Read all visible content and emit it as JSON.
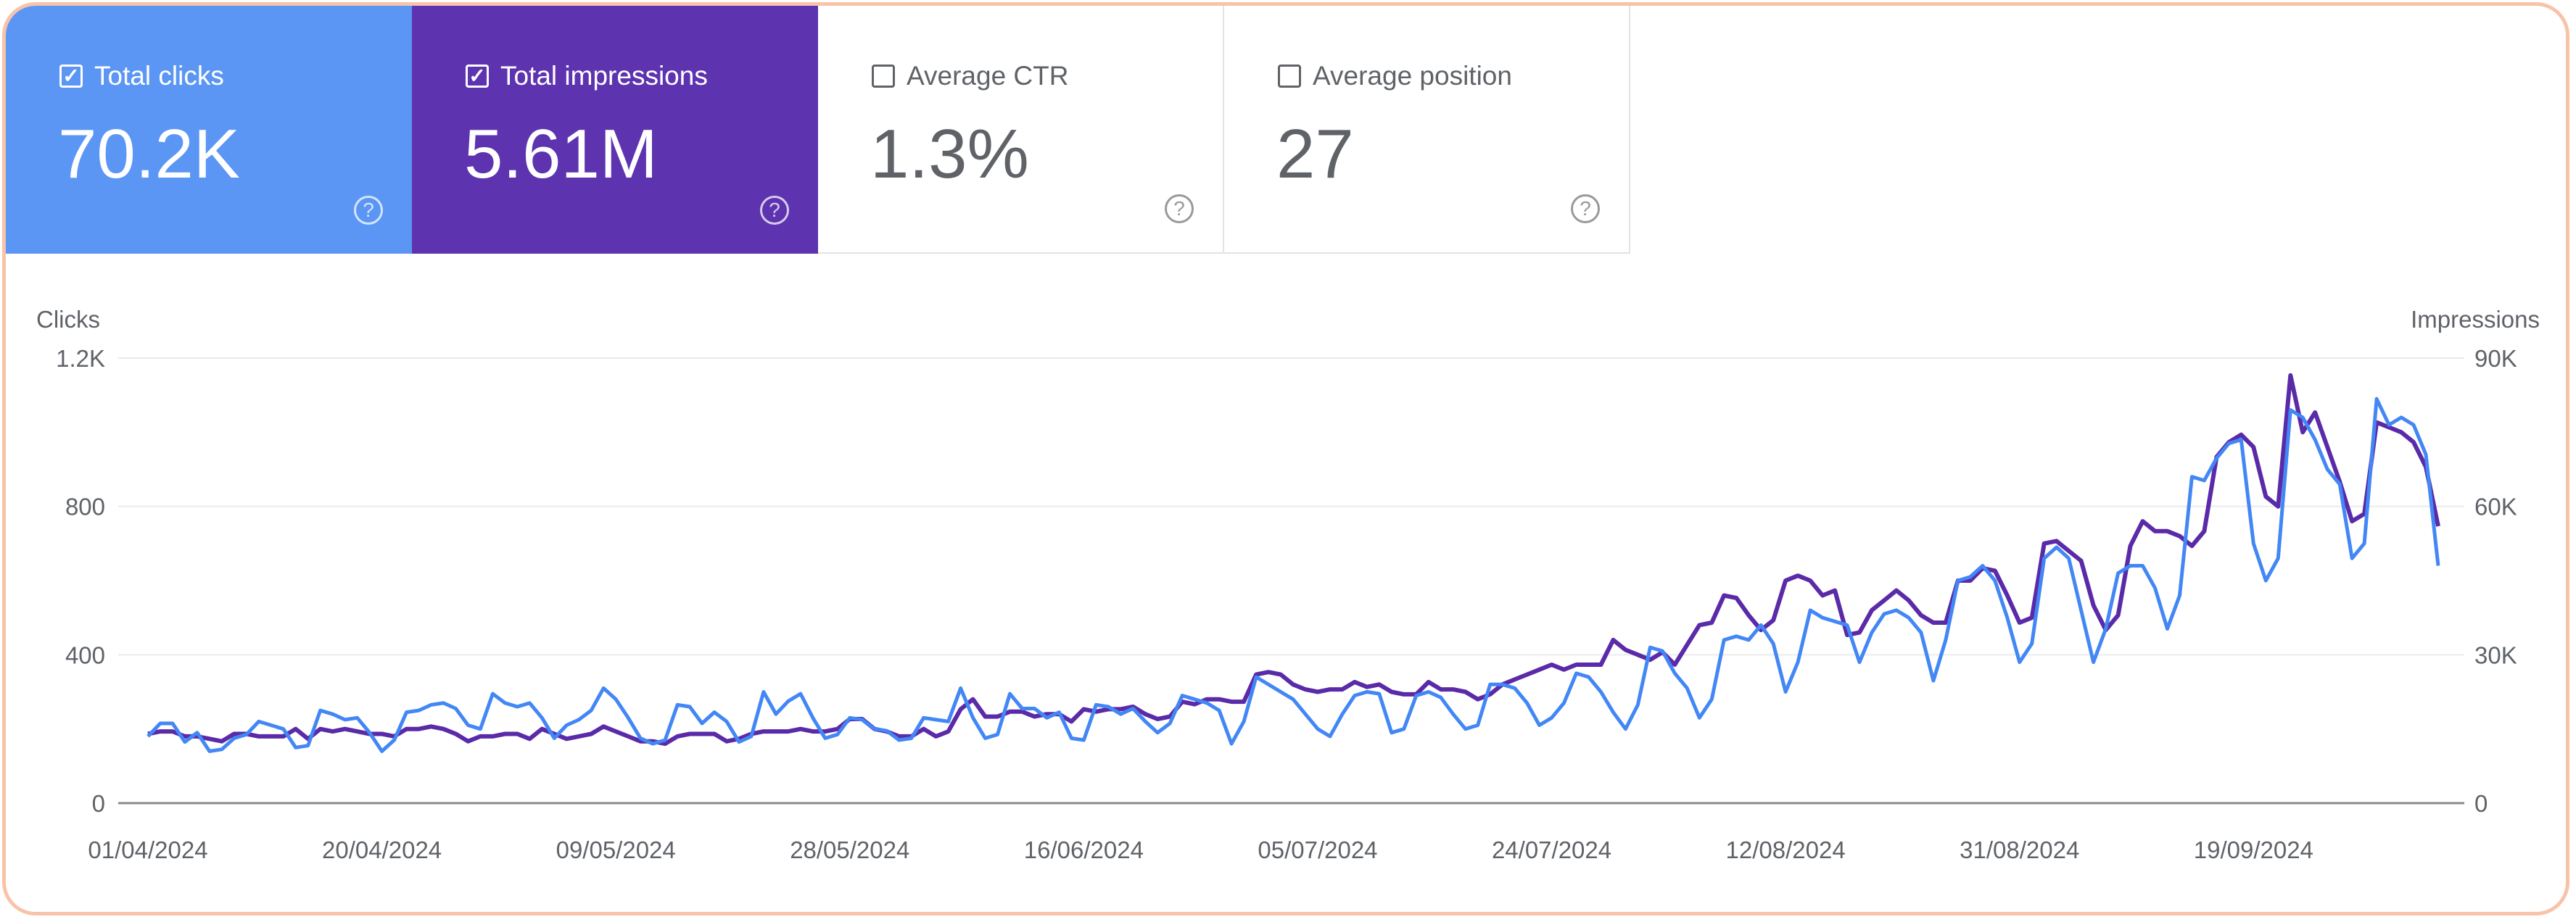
{
  "cards": [
    {
      "label": "Total clicks",
      "value": "70.2K",
      "checked": true,
      "color": "#5b96f5"
    },
    {
      "label": "Total impressions",
      "value": "5.61M",
      "checked": true,
      "color": "#5e33b0"
    },
    {
      "label": "Average CTR",
      "value": "1.3%",
      "checked": false
    },
    {
      "label": "Average position",
      "value": "27",
      "checked": false
    }
  ],
  "help_icon": "question-circle-icon",
  "check_glyph": "✓",
  "help_glyph": "?",
  "chart_data": {
    "type": "line",
    "grid": true,
    "left_axis": {
      "label": "Clicks",
      "ticks": [
        "0",
        "400",
        "800",
        "1.2K"
      ],
      "range": [
        0,
        1200
      ]
    },
    "right_axis": {
      "label": "Impressions",
      "ticks": [
        "0",
        "30K",
        "60K",
        "90K"
      ],
      "range": [
        0,
        90000
      ]
    },
    "x_ticks": [
      "01/04/2024",
      "20/04/2024",
      "09/05/2024",
      "28/05/2024",
      "16/06/2024",
      "05/07/2024",
      "24/07/2024",
      "12/08/2024",
      "31/08/2024",
      "19/09/2024"
    ],
    "x": [
      "2024-04-01",
      "2024-04-02",
      "2024-04-03",
      "2024-04-04",
      "2024-04-05",
      "2024-04-06",
      "2024-04-07",
      "2024-04-08",
      "2024-04-09",
      "2024-04-10",
      "2024-04-11",
      "2024-04-12",
      "2024-04-13",
      "2024-04-14",
      "2024-04-15",
      "2024-04-16",
      "2024-04-17",
      "2024-04-18",
      "2024-04-19",
      "2024-04-20",
      "2024-04-21",
      "2024-04-22",
      "2024-04-23",
      "2024-04-24",
      "2024-04-25",
      "2024-04-26",
      "2024-04-27",
      "2024-04-28",
      "2024-04-29",
      "2024-04-30",
      "2024-05-01",
      "2024-05-02",
      "2024-05-03",
      "2024-05-04",
      "2024-05-05",
      "2024-05-06",
      "2024-05-07",
      "2024-05-08",
      "2024-05-09",
      "2024-05-10",
      "2024-05-11",
      "2024-05-12",
      "2024-05-13",
      "2024-05-14",
      "2024-05-15",
      "2024-05-16",
      "2024-05-17",
      "2024-05-18",
      "2024-05-19",
      "2024-05-20",
      "2024-05-21",
      "2024-05-22",
      "2024-05-23",
      "2024-05-24",
      "2024-05-25",
      "2024-05-26",
      "2024-05-27",
      "2024-05-28",
      "2024-05-29",
      "2024-05-30",
      "2024-05-31",
      "2024-06-01",
      "2024-06-02",
      "2024-06-03",
      "2024-06-04",
      "2024-06-05",
      "2024-06-06",
      "2024-06-07",
      "2024-06-08",
      "2024-06-09",
      "2024-06-10",
      "2024-06-11",
      "2024-06-12",
      "2024-06-13",
      "2024-06-14",
      "2024-06-15",
      "2024-06-16",
      "2024-06-17",
      "2024-06-18",
      "2024-06-19",
      "2024-06-20",
      "2024-06-21",
      "2024-06-22",
      "2024-06-23",
      "2024-06-24",
      "2024-06-25",
      "2024-06-26",
      "2024-06-27",
      "2024-06-28",
      "2024-06-29",
      "2024-06-30",
      "2024-07-01",
      "2024-07-02",
      "2024-07-03",
      "2024-07-04",
      "2024-07-05",
      "2024-07-06",
      "2024-07-07",
      "2024-07-08",
      "2024-07-09",
      "2024-07-10",
      "2024-07-11",
      "2024-07-12",
      "2024-07-13",
      "2024-07-14",
      "2024-07-15",
      "2024-07-16",
      "2024-07-17",
      "2024-07-18",
      "2024-07-19",
      "2024-07-20",
      "2024-07-21",
      "2024-07-22",
      "2024-07-23",
      "2024-07-24",
      "2024-07-25",
      "2024-07-26",
      "2024-07-27",
      "2024-07-28",
      "2024-07-29",
      "2024-07-30",
      "2024-07-31",
      "2024-08-01",
      "2024-08-02",
      "2024-08-03",
      "2024-08-04",
      "2024-08-05",
      "2024-08-06",
      "2024-08-07",
      "2024-08-08",
      "2024-08-09",
      "2024-08-10",
      "2024-08-11",
      "2024-08-12",
      "2024-08-13",
      "2024-08-14",
      "2024-08-15",
      "2024-08-16",
      "2024-08-17",
      "2024-08-18",
      "2024-08-19",
      "2024-08-20",
      "2024-08-21",
      "2024-08-22",
      "2024-08-23",
      "2024-08-24",
      "2024-08-25",
      "2024-08-26",
      "2024-08-27",
      "2024-08-28",
      "2024-08-29",
      "2024-08-30",
      "2024-08-31",
      "2024-09-01",
      "2024-09-02",
      "2024-09-03",
      "2024-09-04",
      "2024-09-05",
      "2024-09-06",
      "2024-09-07",
      "2024-09-08",
      "2024-09-09",
      "2024-09-10",
      "2024-09-11",
      "2024-09-12",
      "2024-09-13",
      "2024-09-14",
      "2024-09-15",
      "2024-09-16",
      "2024-09-17",
      "2024-09-18",
      "2024-09-19",
      "2024-09-20",
      "2024-09-21",
      "2024-09-22",
      "2024-09-23",
      "2024-09-24",
      "2024-09-25",
      "2024-09-26",
      "2024-09-27",
      "2024-09-28",
      "2024-09-29",
      "2024-09-30",
      "2024-10-01",
      "2024-10-02",
      "2024-10-03",
      "2024-10-04"
    ],
    "series": [
      {
        "axis": "left",
        "color": "#4287f5",
        "values": [
          180,
          215,
          215,
          165,
          190,
          140,
          145,
          175,
          185,
          220,
          210,
          200,
          150,
          155,
          250,
          240,
          225,
          230,
          190,
          140,
          170,
          245,
          250,
          265,
          270,
          255,
          210,
          200,
          295,
          270,
          260,
          270,
          230,
          175,
          210,
          225,
          250,
          310,
          280,
          230,
          175,
          160,
          170,
          265,
          260,
          215,
          245,
          220,
          165,
          180,
          300,
          240,
          275,
          295,
          230,
          175,
          185,
          230,
          225,
          200,
          195,
          170,
          175,
          230,
          225,
          220,
          310,
          230,
          175,
          185,
          295,
          255,
          255,
          230,
          245,
          175,
          170,
          265,
          260,
          240,
          255,
          220,
          190,
          215,
          290,
          280,
          270,
          250,
          160,
          220,
          340,
          320,
          300,
          280,
          240,
          200,
          180,
          240,
          290,
          300,
          295,
          190,
          200,
          290,
          300,
          285,
          240,
          200,
          210,
          320,
          320,
          310,
          270,
          210,
          230,
          270,
          350,
          340,
          300,
          245,
          200,
          265,
          420,
          410,
          350,
          310,
          230,
          280,
          440,
          450,
          440,
          480,
          430,
          300,
          380,
          520,
          500,
          490,
          480,
          380,
          460,
          510,
          520,
          500,
          460,
          330,
          440,
          600,
          610,
          640,
          600,
          500,
          380,
          430,
          660,
          690,
          660,
          520,
          380,
          470,
          620,
          640,
          640,
          580,
          470,
          560,
          880,
          870,
          930,
          970,
          980,
          700,
          600,
          660,
          1060,
          1040,
          980,
          900,
          860,
          660,
          700,
          1090,
          1020,
          1040,
          1020,
          940,
          640
        ]
      },
      {
        "axis": "right",
        "color": "#5a2aa8",
        "values": [
          14000,
          14500,
          14500,
          13500,
          13500,
          13000,
          12500,
          14000,
          14000,
          13500,
          13500,
          13500,
          15000,
          13000,
          15000,
          14500,
          15000,
          14500,
          14000,
          14000,
          13500,
          15000,
          15000,
          15500,
          15000,
          14000,
          12500,
          13500,
          13500,
          14000,
          14000,
          13000,
          15000,
          14000,
          13000,
          13500,
          14000,
          15500,
          14500,
          13500,
          12500,
          12500,
          12000,
          13500,
          14000,
          14000,
          14000,
          12500,
          13000,
          14000,
          14500,
          14500,
          14500,
          15000,
          14500,
          14500,
          15000,
          17000,
          17000,
          15000,
          14500,
          13500,
          13500,
          15000,
          13500,
          14500,
          19000,
          21000,
          17500,
          17500,
          18500,
          18500,
          17500,
          18000,
          18000,
          16500,
          19000,
          18500,
          19000,
          19000,
          19500,
          18000,
          17000,
          17500,
          20500,
          20000,
          21000,
          21000,
          20500,
          20500,
          26000,
          26500,
          26000,
          24000,
          23000,
          22500,
          23000,
          23000,
          24500,
          23500,
          24000,
          22500,
          22000,
          22000,
          24500,
          23000,
          23000,
          22500,
          21000,
          22000,
          24000,
          25000,
          26000,
          27000,
          28000,
          27000,
          28000,
          28000,
          28000,
          33000,
          31000,
          30000,
          29000,
          30500,
          28000,
          32000,
          36000,
          36500,
          42000,
          41500,
          38000,
          35000,
          37000,
          45000,
          46000,
          45000,
          42000,
          43000,
          34000,
          34500,
          39000,
          41000,
          43000,
          41000,
          38000,
          36500,
          36500,
          45000,
          45000,
          47500,
          47000,
          42000,
          36500,
          37500,
          52500,
          53000,
          51000,
          49000,
          40000,
          35000,
          38000,
          52000,
          57000,
          55000,
          55000,
          54000,
          52000,
          55000,
          70000,
          73000,
          74500,
          72000,
          62000,
          60000,
          86500,
          75000,
          79000,
          72000,
          65000,
          57000,
          58500,
          77000,
          76000,
          75000,
          73000,
          68000,
          56000
        ]
      }
    ]
  }
}
